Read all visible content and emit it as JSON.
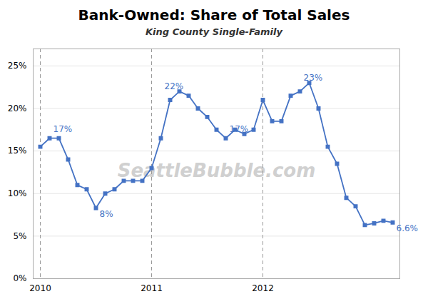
{
  "chart_data": {
    "type": "line",
    "title": "Bank-Owned: Share of Total Sales",
    "subtitle": "King County Single-Family",
    "watermark": "SeattleBubble.com",
    "color": "#4472C4",
    "marker": "square",
    "grid": true,
    "categories": [
      "2010",
      null,
      null,
      null,
      null,
      null,
      null,
      null,
      null,
      null,
      null,
      null,
      "2011",
      null,
      null,
      null,
      null,
      null,
      null,
      null,
      null,
      null,
      null,
      null,
      "2012",
      null,
      null,
      null,
      null,
      null,
      null,
      null,
      null,
      null,
      null,
      null,
      null,
      null,
      null
    ],
    "values": [
      0.155,
      0.165,
      0.165,
      0.14,
      0.11,
      0.105,
      0.083,
      0.1,
      0.105,
      0.115,
      0.115,
      0.115,
      0.13,
      0.165,
      0.21,
      0.22,
      0.215,
      0.2,
      0.19,
      0.175,
      0.165,
      0.175,
      0.17,
      0.175,
      0.21,
      0.185,
      0.185,
      0.215,
      0.22,
      0.23,
      0.2,
      0.155,
      0.135,
      0.095,
      0.085,
      0.063,
      0.065,
      0.068,
      0.066
    ],
    "ylim": [
      0,
      0.27
    ],
    "yticks": [
      {
        "value": 0,
        "label": "0%"
      },
      {
        "value": 0.05,
        "label": "5%"
      },
      {
        "value": 0.1,
        "label": "10%"
      },
      {
        "value": 0.15,
        "label": "15%"
      },
      {
        "value": 0.2,
        "label": "20%"
      },
      {
        "value": 0.25,
        "label": "25%"
      }
    ],
    "annotations": [
      {
        "x": 1,
        "y": 0.17,
        "text": "17%"
      },
      {
        "x": 6,
        "y": 0.083,
        "text": "8%"
      },
      {
        "x": 13,
        "y": 0.22,
        "text": "22%"
      },
      {
        "x": 20,
        "y": 0.17,
        "text": "17%"
      },
      {
        "x": 28,
        "y": 0.23,
        "text": "23%"
      },
      {
        "x": 38,
        "y": 0.066,
        "text": "6.6%"
      }
    ]
  }
}
